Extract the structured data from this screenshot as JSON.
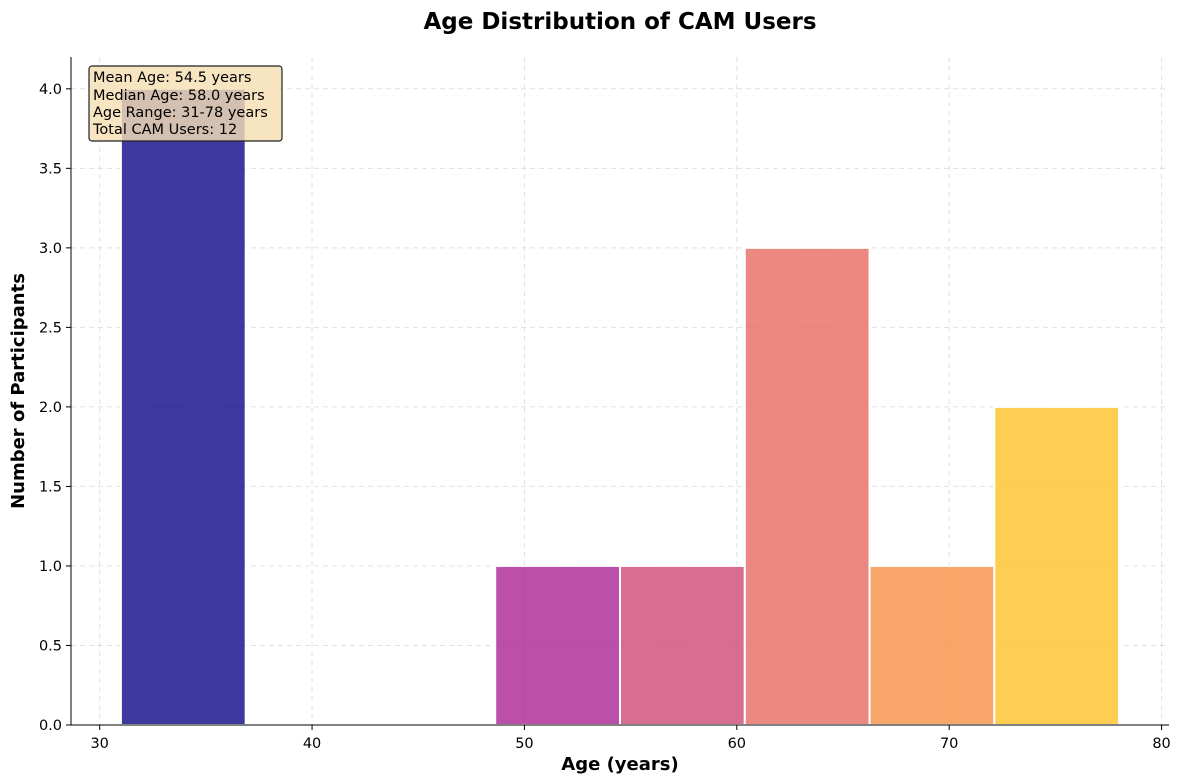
{
  "chart_data": {
    "type": "bar",
    "title": "Age Distribution of CAM Users",
    "xlabel": "Age (years)",
    "ylabel": "Number of Participants",
    "xlim": [
      28.65,
      80.35
    ],
    "ylim": [
      0,
      4.2
    ],
    "xticks": [
      30,
      40,
      50,
      60,
      70,
      80
    ],
    "yticks": [
      0.0,
      0.5,
      1.0,
      1.5,
      2.0,
      2.5,
      3.0,
      3.5,
      4.0
    ],
    "xtick_labels": [
      "30",
      "40",
      "50",
      "60",
      "70",
      "80"
    ],
    "ytick_labels": [
      "0.0",
      "0.5",
      "1.0",
      "1.5",
      "2.0",
      "2.5",
      "3.0",
      "3.5",
      "4.0"
    ],
    "grid": true,
    "bins": [
      {
        "start": 31.0,
        "end": 36.875,
        "count": 4,
        "color": "#0d0887"
      },
      {
        "start": 36.875,
        "end": 42.75,
        "count": 0,
        "color": "#41049d"
      },
      {
        "start": 42.75,
        "end": 48.625,
        "count": 0,
        "color": "#6a00a8"
      },
      {
        "start": 48.625,
        "end": 54.5,
        "count": 1,
        "color": "#ab2494"
      },
      {
        "start": 54.5,
        "end": 60.375,
        "count": 1,
        "color": "#ce4a76"
      },
      {
        "start": 60.375,
        "end": 66.25,
        "count": 3,
        "color": "#e76b62"
      },
      {
        "start": 66.25,
        "end": 72.125,
        "count": 1,
        "color": "#f79044"
      },
      {
        "start": 72.125,
        "end": 78.0,
        "count": 2,
        "color": "#fdc328"
      }
    ],
    "annotation": {
      "placement": "top-left",
      "lines": [
        "Mean Age: 54.5 years",
        "Median Age: 58.0 years",
        "Age Range: 31-78 years",
        "Total CAM Users: 12"
      ]
    }
  }
}
